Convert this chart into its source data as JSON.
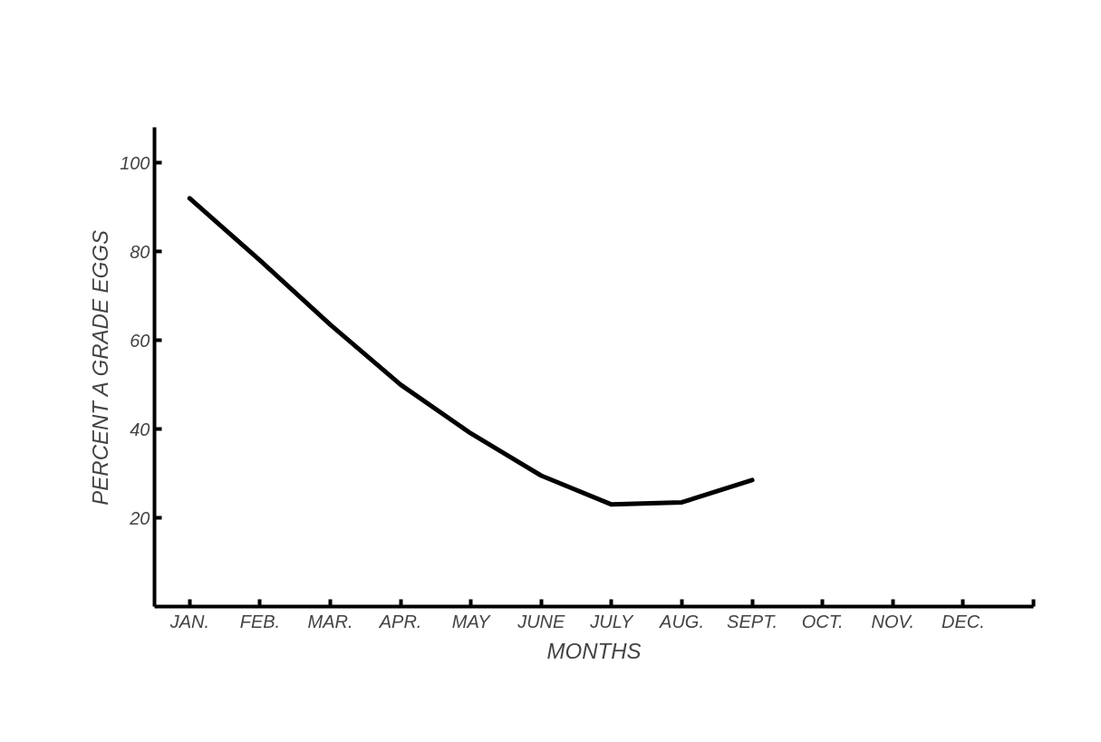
{
  "chart_data": {
    "type": "line",
    "xlabel": "MONTHS",
    "ylabel": "PERCENT A GRADE EGGS",
    "categories": [
      "JAN.",
      "FEB.",
      "MAR.",
      "APR.",
      "MAY",
      "JUNE",
      "JULY",
      "AUG.",
      "SEPT.",
      "OCT.",
      "NOV.",
      "DEC.",
      null
    ],
    "series": [
      {
        "color": "#000000",
        "values": [
          92,
          78,
          63.5,
          50,
          39,
          29.5,
          23,
          23.5,
          28.5,
          null,
          null,
          null,
          null
        ]
      }
    ],
    "ylim": [
      0,
      108
    ],
    "yticks": [
      20,
      40,
      60,
      80,
      100
    ],
    "grid": false,
    "marker": "none",
    "line_style": "solid"
  }
}
